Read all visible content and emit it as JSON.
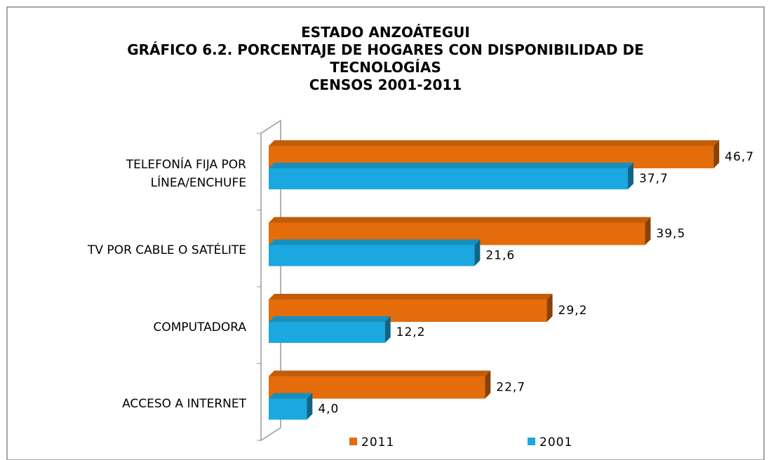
{
  "chart_data": {
    "type": "bar",
    "orientation": "horizontal",
    "title": "ESTADO ANZOÁTEGUI\nGRÁFICO 6.2. PORCENTAJE DE HOGARES CON DISPONIBILIDAD  DE\nTECNOLOGÍAS\nCENSOS 2001-2011",
    "categories": [
      "TELEFONÍA FIJA POR\nLÍNEA/ENCHUFE",
      "TV POR CABLE O SATÉLITE",
      "COMPUTADORA",
      "ACCESO A INTERNET"
    ],
    "series": [
      {
        "name": "2011",
        "color": "#e46c0a",
        "values": [
          46.7,
          39.5,
          29.2,
          22.7
        ],
        "value_labels": [
          "46,7",
          "39,5",
          "29,2",
          "22,7"
        ]
      },
      {
        "name": "2001",
        "color": "#1ba8e0",
        "values": [
          37.7,
          21.6,
          12.2,
          4.0
        ],
        "value_labels": [
          "37,7",
          "21,6",
          "12,2",
          "4,0"
        ]
      }
    ],
    "xlim": [
      0,
      50
    ],
    "legend": "bottom"
  }
}
